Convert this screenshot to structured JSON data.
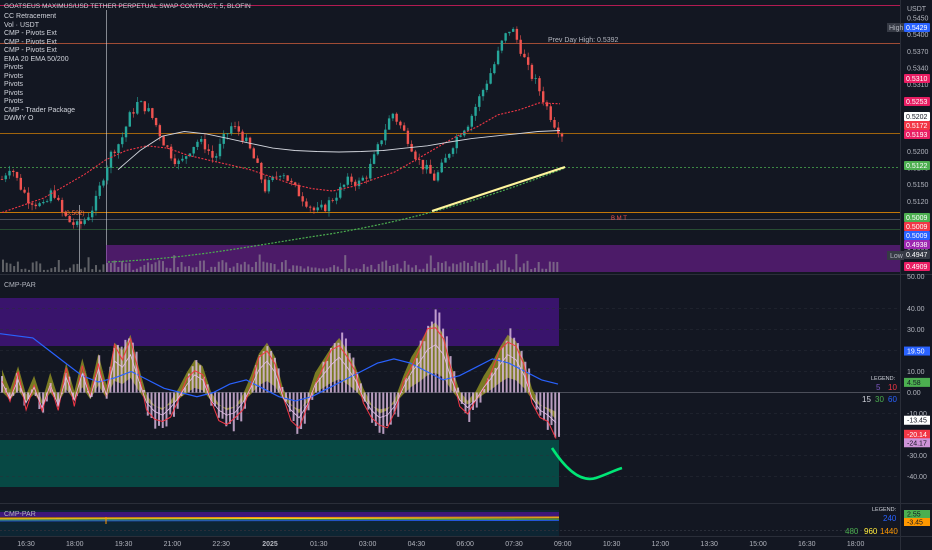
{
  "header": {
    "title": "GOATSEUS MAXIMUS/USD TETHER PERPETUAL SWAP CONTRACT, 5, BLOFIN",
    "currency": "USDT"
  },
  "indicators": [
    "CC Retracement",
    "Vol · USDT",
    "CMP - Pivots Ext",
    "CMP - Pivots Ext",
    "CMP - Pivots Ext",
    "EMA 20 EMA 50/200",
    "Pivots",
    "Pivots",
    "Pivots",
    "Pivots",
    "Pivots",
    "CMP - Trader Package",
    "DWMY O"
  ],
  "annotations": {
    "prev_day_high": "Prev Day High: 0.5392",
    "left_level": "(0.502)",
    "pivot_letters": "B  M  T",
    "high_label": "High",
    "low_label": "Low"
  },
  "price_axis": {
    "ticks": [
      "0.5450",
      "0.5400",
      "0.5370",
      "0.5340",
      "0.5310",
      "0.5280",
      "0.5250",
      "0.5230",
      "0.5200",
      "0.5170",
      "0.5150",
      "0.5120",
      "0.5090",
      "0.5060",
      "0.5030",
      "0.5000"
    ]
  },
  "price_tags": [
    {
      "value": "0.5429",
      "color": "#2962ff",
      "text_color": "#ffffff"
    },
    {
      "value": "0.5310",
      "color": "#e91e63",
      "text_color": "#ffffff"
    },
    {
      "value": "0.5253",
      "color": "#e91e63",
      "text_color": "#ffffff"
    },
    {
      "value": "0.5202",
      "color": "#ffffff",
      "text_color": "#131722"
    },
    {
      "value": "0.5172",
      "color": "#f23645",
      "text_color": "#ffffff"
    },
    {
      "value": "0.5193",
      "color": "#e91e63",
      "text_color": "#ffffff"
    },
    {
      "value": "0.5122",
      "color": "#4caf50",
      "text_color": "#ffffff"
    },
    {
      "value": "0.5009",
      "color": "#4caf50",
      "text_color": "#ffffff"
    },
    {
      "value": "0.5009",
      "color": "#f23645",
      "text_color": "#ffffff"
    },
    {
      "value": "0.5009",
      "color": "#2962ff",
      "text_color": "#ffffff"
    },
    {
      "value": "0.4938",
      "color": "#9c27b0",
      "text_color": "#ffffff"
    },
    {
      "value": "0.4947",
      "color": "#363a45",
      "text_color": "#ffffff"
    },
    {
      "value": "0.4909",
      "color": "#e91e63",
      "text_color": "#ffffff"
    }
  ],
  "volume_axis_label": "50.00",
  "sub_pane": {
    "title": "CMP-PAR",
    "axis_ticks": [
      "40.00",
      "30.00",
      "20.00",
      "10.00",
      "0.00",
      "-10.00",
      "-20.00",
      "-30.00",
      "-40.00"
    ],
    "tags": [
      {
        "value": "19.50",
        "color": "#2962ff",
        "text_color": "#ffffff"
      },
      {
        "value": "4.58",
        "color": "#4caf50",
        "text_color": "#131722"
      },
      {
        "value": "-13.45",
        "color": "#ffffff",
        "text_color": "#131722"
      },
      {
        "value": "-20.14",
        "color": "#f23645",
        "text_color": "#ffffff"
      },
      {
        "value": "-24.17",
        "color": "#ce93d8",
        "text_color": "#131722"
      }
    ],
    "legend": {
      "title": "LEGEND:",
      "row1": [
        {
          "t": "5",
          "c": "#7e57c2"
        },
        {
          "t": "10",
          "c": "#f23645"
        }
      ],
      "row2": [
        {
          "t": "15",
          "c": "#d1d4dc"
        },
        {
          "t": "30",
          "c": "#4caf50"
        },
        {
          "t": "60",
          "c": "#2962ff"
        }
      ]
    }
  },
  "bottom_pane": {
    "title": "CMP-PAR",
    "legend_title": "LEGEND:",
    "legend_values": [
      {
        "t": "240",
        "c": "#2962ff"
      },
      {
        "t": "480",
        "c": "#4caf50"
      },
      {
        "t": "960",
        "c": "#ffeb3b"
      },
      {
        "t": "1440",
        "c": "#ff9800"
      }
    ],
    "tags": [
      {
        "value": "2.55",
        "color": "#4caf50",
        "text_color": "#131722"
      },
      {
        "value": "-3.45",
        "color": "#ff9800",
        "text_color": "#131722"
      }
    ]
  },
  "time_axis": {
    "ticks": [
      "16:30",
      "18:00",
      "19:30",
      "21:00",
      "22:30",
      "2025",
      "01:30",
      "03:00",
      "04:30",
      "06:00",
      "07:30",
      "09:00",
      "10:30",
      "12:00",
      "13:30",
      "15:00",
      "16:30",
      "18:00"
    ],
    "bold": "2025"
  },
  "chart_data": {
    "type": "candlestick",
    "symbol": "GOATSEUS MAXIMUS/USD TETHER PERPETUAL SWAP CONTRACT",
    "timeframe": "5",
    "exchange": "BLOFIN",
    "ylim": [
      0.4905,
      0.5455
    ],
    "x_range": [
      "16:00",
      "18:30 (next day)"
    ],
    "levels": {
      "high": 0.5429,
      "prev_day_high": 0.5392,
      "low": 0.4947
    },
    "close_series": [
      0.51,
      0.513,
      0.509,
      0.506,
      0.505,
      0.504,
      0.508,
      0.503,
      0.501,
      0.5,
      0.502,
      0.505,
      0.511,
      0.516,
      0.518,
      0.523,
      0.526,
      0.525,
      0.522,
      0.518,
      0.515,
      0.513,
      0.516,
      0.518,
      0.517,
      0.514,
      0.518,
      0.521,
      0.52,
      0.517,
      0.513,
      0.508,
      0.51,
      0.512,
      0.509,
      0.507,
      0.505,
      0.503,
      0.504,
      0.506,
      0.508,
      0.51,
      0.509,
      0.511,
      0.515,
      0.52,
      0.524,
      0.521,
      0.518,
      0.514,
      0.512,
      0.51,
      0.513,
      0.517,
      0.52,
      0.522,
      0.526,
      0.53,
      0.534,
      0.539,
      0.542,
      0.538,
      0.533,
      0.53,
      0.526,
      0.522,
      0.5195
    ],
    "ema20_series": [
      0.503,
      0.5045,
      0.506,
      0.5085,
      0.511,
      0.514,
      0.516,
      0.517,
      0.5165,
      0.515,
      0.514,
      0.513,
      0.512,
      0.5105,
      0.509,
      0.508,
      0.5075,
      0.5085,
      0.51,
      0.5115,
      0.514,
      0.5165,
      0.519,
      0.521,
      0.5235,
      0.5245,
      0.526,
      0.5258
    ],
    "ema200_series": [
      0.512,
      0.516,
      0.519,
      0.52,
      0.5195,
      0.5185,
      0.5175,
      0.5165,
      0.516,
      0.5158,
      0.5157,
      0.5158,
      0.516,
      0.5165,
      0.517,
      0.5178,
      0.5185,
      0.519,
      0.5195,
      0.52,
      0.5202
    ],
    "oscillator": {
      "name": "CMP-PAR",
      "ylim": [
        -45,
        45
      ],
      "histogram": [
        8,
        -5,
        10,
        -8,
        4,
        -12,
        6,
        -10,
        12,
        -6,
        15,
        -4,
        18,
        -2,
        25,
        20,
        30,
        10,
        -8,
        -15,
        -18,
        -12,
        -4,
        6,
        14,
        10,
        -6,
        -14,
        -18,
        -16,
        -8,
        4,
        18,
        25,
        16,
        -4,
        -14,
        -20,
        -10,
        6,
        14,
        22,
        28,
        20,
        10,
        -4,
        -14,
        -20,
        -18,
        -10,
        4,
        16,
        24,
        34,
        38,
        30,
        10,
        -6,
        -12,
        -6,
        4,
        12,
        22,
        30,
        26,
        14,
        -4,
        -14,
        -18,
        -24
      ],
      "latest": {
        "5": 4.58,
        "10": -20.14,
        "15": -13.45,
        "60": 19.5,
        "osc": -24.17
      }
    }
  }
}
